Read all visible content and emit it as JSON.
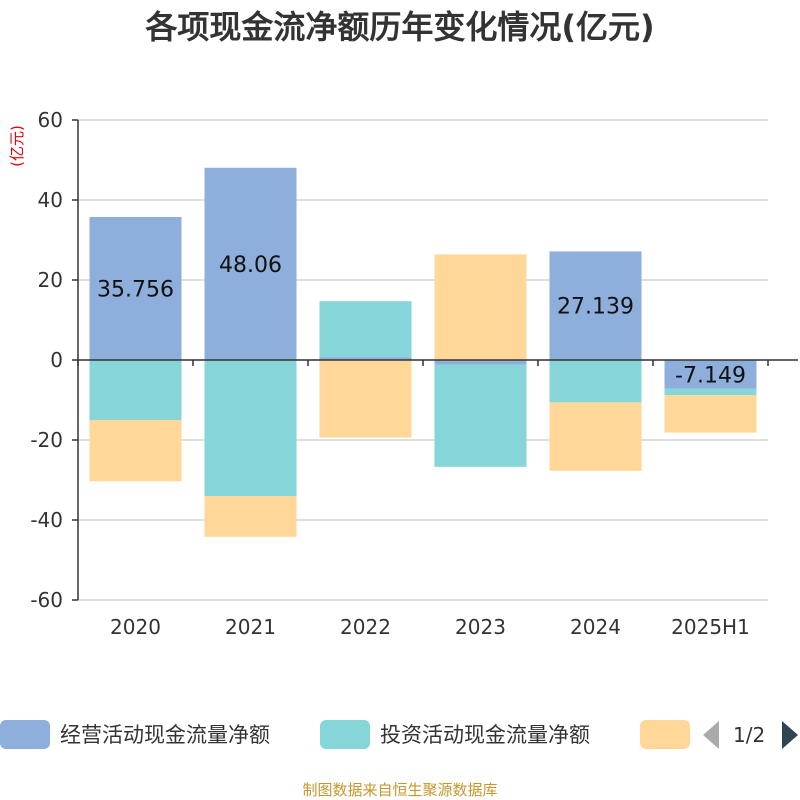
{
  "chart_data": {
    "type": "bar",
    "stacked": true,
    "title": "各项现金流净额历年变化情况(亿元)",
    "unit_label": "(亿元)",
    "categories": [
      "2020",
      "2021",
      "2022",
      "2023",
      "2024",
      "2025H1"
    ],
    "ylim": [
      -60,
      60
    ],
    "yticks": [
      60,
      40,
      20,
      0,
      -20,
      -40,
      -60
    ],
    "grid": true,
    "legend_position": "bottom",
    "series": [
      {
        "name": "经营活动现金流量净额",
        "color": "#8eaedb",
        "values": [
          35.756,
          48.06,
          0.7,
          -1.2,
          27.139,
          -7.149
        ],
        "labels": [
          "35.756",
          "48.06",
          "",
          "",
          "27.139",
          "-7.149"
        ]
      },
      {
        "name": "投资活动现金流量净额",
        "color": "#86d5d8",
        "values": [
          -15.0,
          -34.0,
          14.0,
          -25.5,
          -10.6,
          -1.6
        ]
      },
      {
        "name": "",
        "color": "#ffd799",
        "values": [
          -15.3,
          -10.2,
          -19.4,
          26.4,
          -17.1,
          -9.4
        ]
      }
    ]
  },
  "legend": {
    "pager_text": "1/2"
  },
  "source_text": "制图数据来自恒生聚源数据库"
}
